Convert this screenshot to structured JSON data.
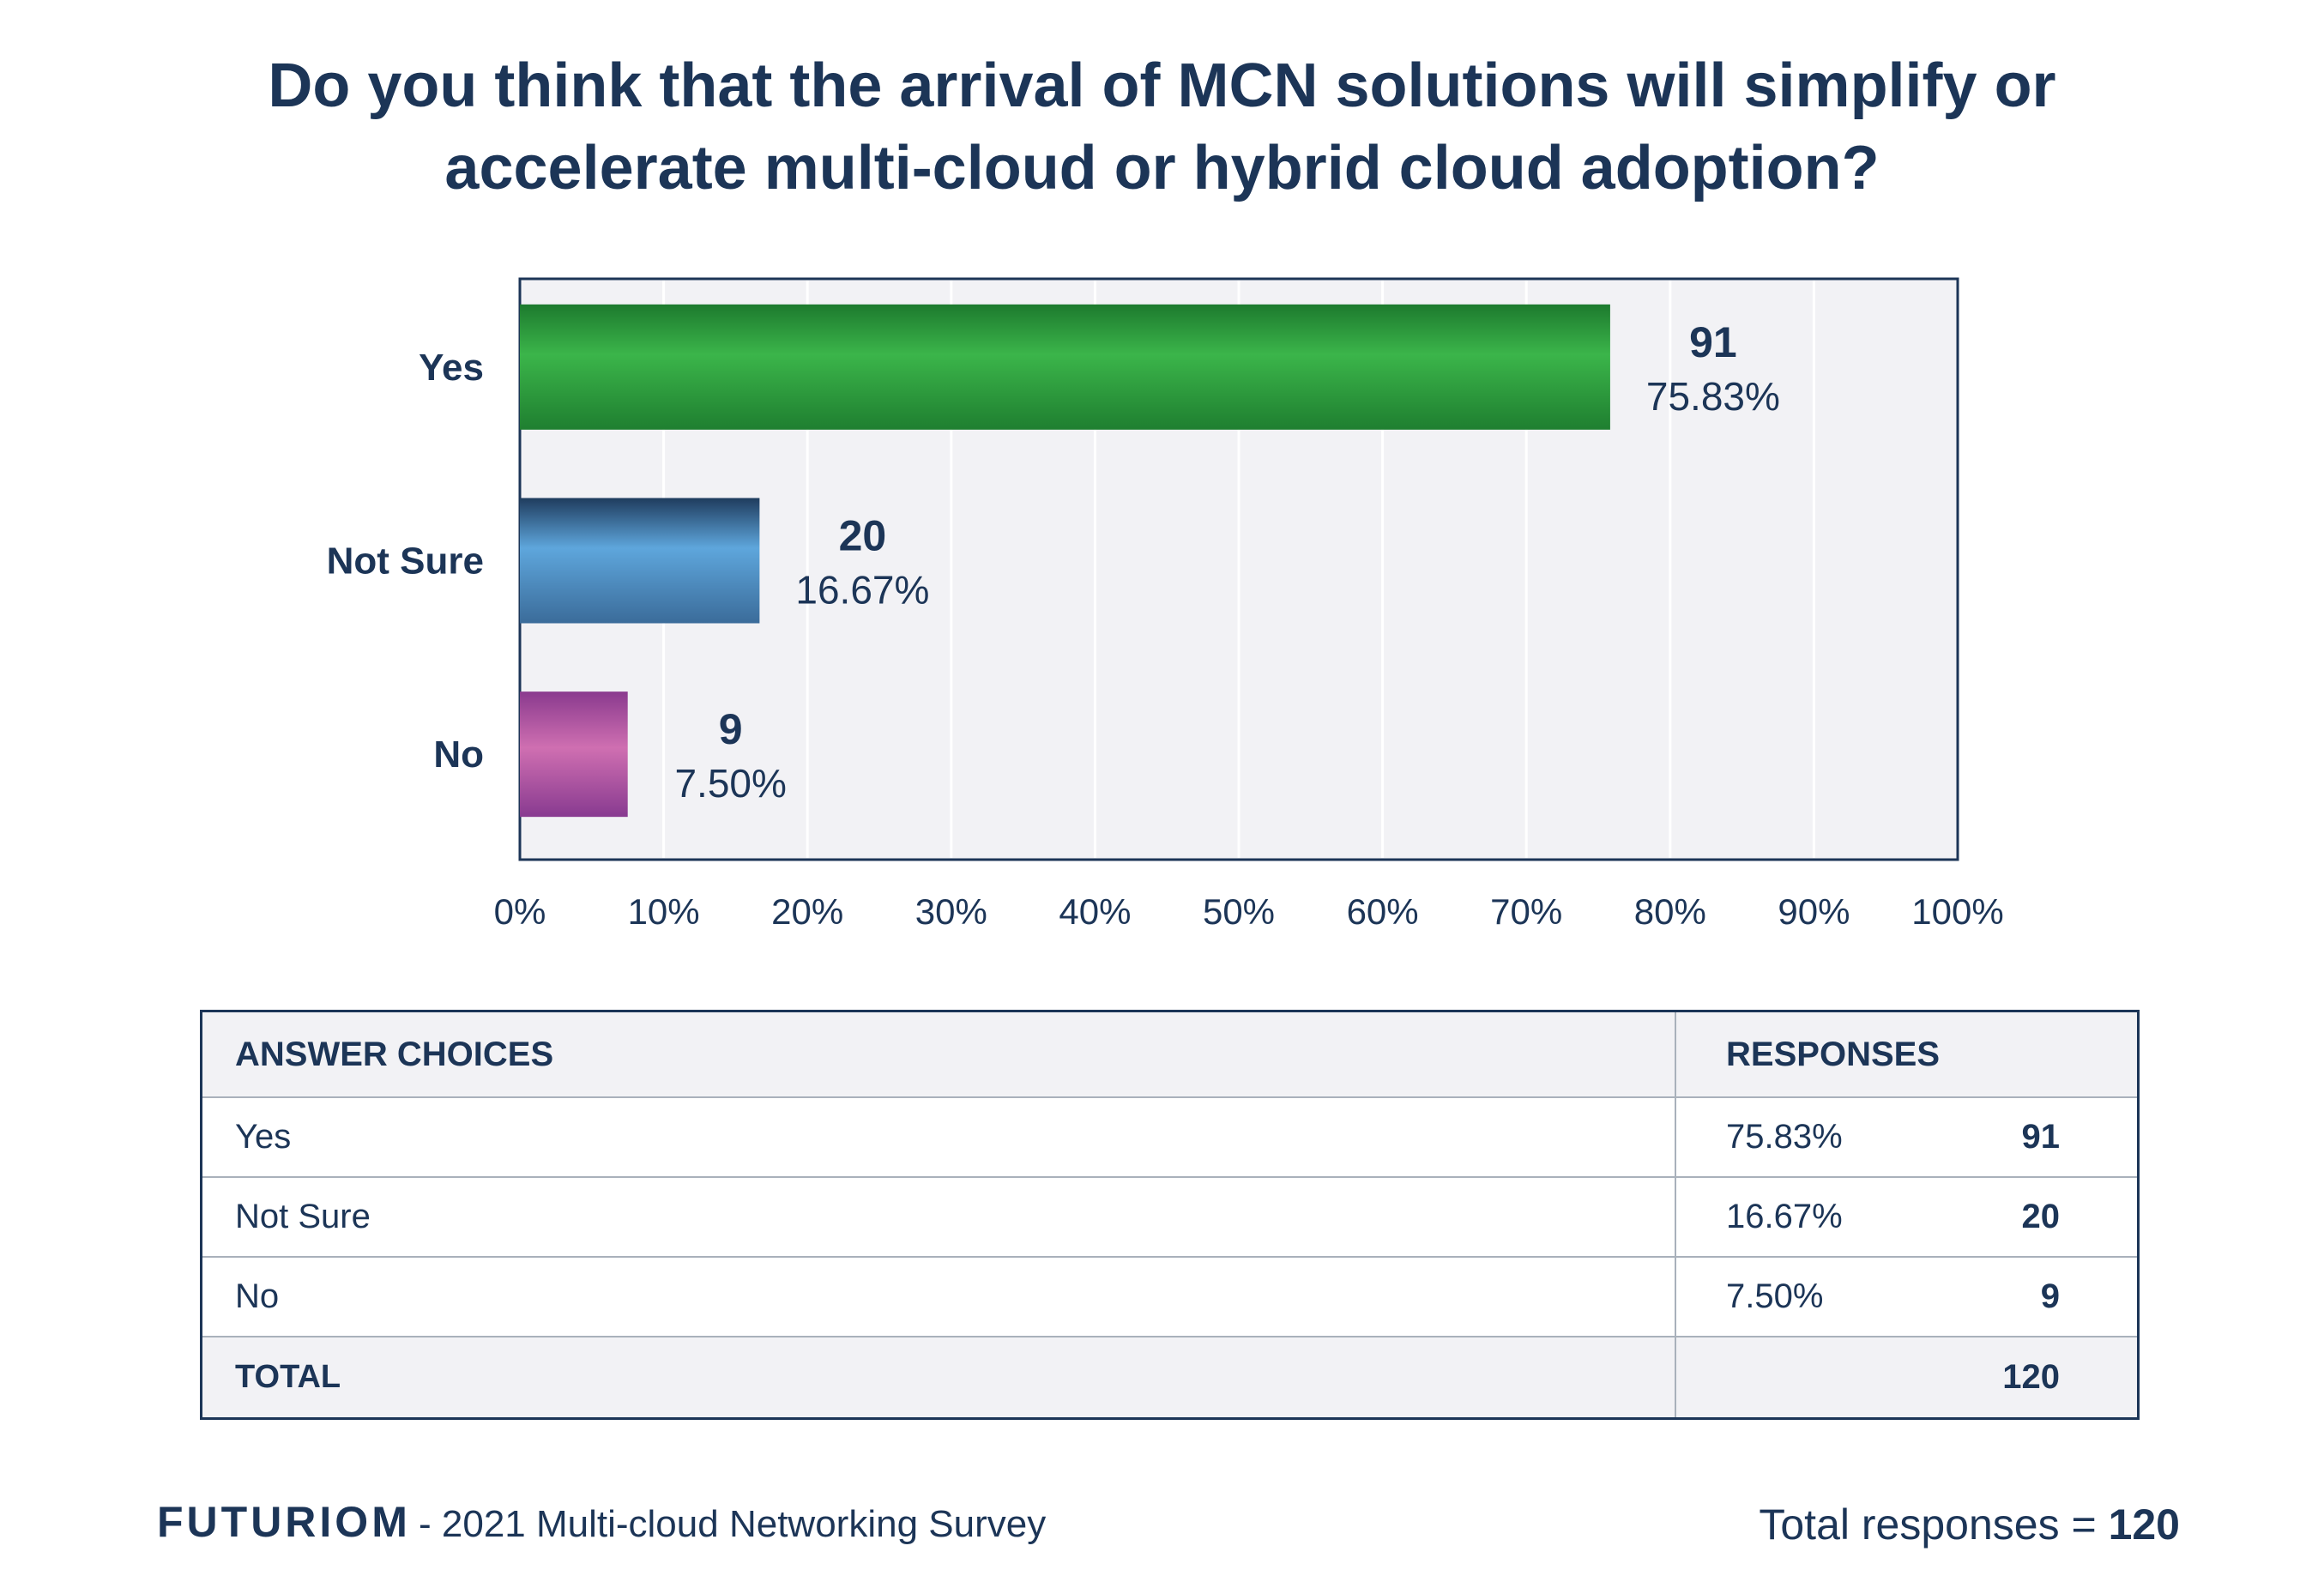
{
  "chart_data": {
    "type": "bar",
    "orientation": "horizontal",
    "title": "Do you think that the arrival of MCN solutions will simplify or accelerate multi-cloud or hybrid cloud adoption?",
    "title_lines": [
      "Do you think that the arrival of MCN solutions will simplify or",
      "accelerate multi-cloud or hybrid cloud adoption?"
    ],
    "categories": [
      "Yes",
      "Not Sure",
      "No"
    ],
    "counts": [
      91,
      20,
      9
    ],
    "values": [
      75.83,
      16.67,
      7.5
    ],
    "value_labels": [
      "75.83%",
      "16.67%",
      "7.50%"
    ],
    "count_labels": [
      "91",
      "20",
      "9"
    ],
    "xlim": [
      0,
      100
    ],
    "x_ticks": [
      "0%",
      "10%",
      "20%",
      "30%",
      "40%",
      "50%",
      "60%",
      "70%",
      "80%",
      "90%",
      "100%"
    ],
    "grid": true,
    "colors": [
      "#2f9e3f",
      "#5b9fd4",
      "#b55aa6"
    ],
    "xlabel": "",
    "ylabel": ""
  },
  "table": {
    "header_choices": "ANSWER CHOICES",
    "header_responses": "RESPONSES",
    "rows": [
      {
        "choice": "Yes",
        "pct": "75.83%",
        "count": "91"
      },
      {
        "choice": "Not Sure",
        "pct": "16.67%",
        "count": "20"
      },
      {
        "choice": "No",
        "pct": "7.50%",
        "count": "9"
      }
    ],
    "total_label": "TOTAL",
    "total_count": "120"
  },
  "footer": {
    "brand": "FUTURIOM",
    "survey": "- 2021 Multi-cloud Networking Survey",
    "total_prefix": "Total responses = ",
    "total_value": "120"
  }
}
